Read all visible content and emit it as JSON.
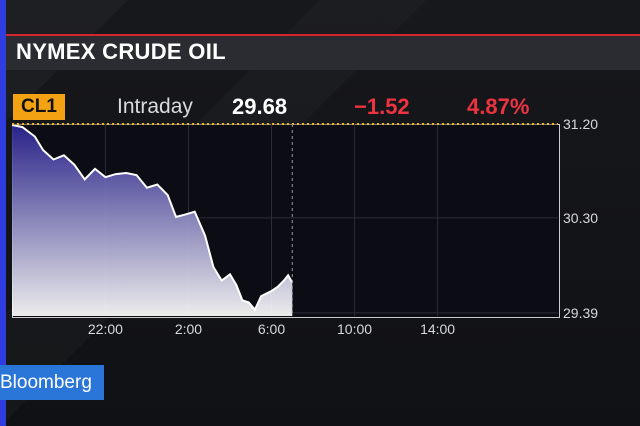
{
  "header": {
    "title": "NYMEX CRUDE OIL"
  },
  "ticker": {
    "symbol": "CL1",
    "period": "Intraday",
    "price": "29.68",
    "change": "−1.52",
    "change_pct": "4.87%"
  },
  "branding": {
    "logo_text": "Bloomberg"
  },
  "colors": {
    "accent_red": "#ee3340",
    "badge_orange": "#f3a311",
    "area_top": "#2b2492",
    "area_bottom": "#ffffff",
    "reference_line": "#f3b81a",
    "brand_blue": "#2a75d8"
  },
  "chart_data": {
    "type": "area",
    "xlabel": "",
    "ylabel": "",
    "x_ticks": [
      "22:00",
      "2:00",
      "6:00",
      "10:00",
      "14:00"
    ],
    "x_tick_hours": [
      22,
      26,
      30,
      34,
      38
    ],
    "xlim_hours": [
      17.5,
      43.8
    ],
    "y_ticks": [
      "31.20",
      "30.30",
      "29.39"
    ],
    "y_tick_values": [
      31.2,
      30.3,
      29.39
    ],
    "ylim": [
      29.36,
      31.2
    ],
    "reference_line": {
      "value": 31.2,
      "style": "dotted"
    },
    "session_end_marker_hour": 31.0,
    "grid": true,
    "series": [
      {
        "x": [
          17.5,
          18.0,
          18.6,
          19.0,
          19.5,
          20.0,
          20.5,
          21.0,
          21.5,
          22.0,
          22.5,
          23.0,
          23.5,
          24.0,
          24.5,
          25.0,
          25.4,
          25.8,
          26.3,
          26.8,
          27.2,
          27.6,
          28.0,
          28.3,
          28.6,
          28.9,
          29.2,
          29.5,
          29.8,
          30.0,
          30.3,
          30.6,
          30.8,
          31.0
        ],
        "y": [
          31.19,
          31.17,
          31.08,
          30.95,
          30.86,
          30.9,
          30.81,
          30.67,
          30.77,
          30.69,
          30.72,
          30.73,
          30.71,
          30.59,
          30.62,
          30.52,
          30.31,
          30.33,
          30.36,
          30.13,
          29.83,
          29.7,
          29.76,
          29.66,
          29.51,
          29.49,
          29.42,
          29.55,
          29.58,
          29.6,
          29.64,
          29.7,
          29.75,
          29.68
        ]
      }
    ]
  }
}
